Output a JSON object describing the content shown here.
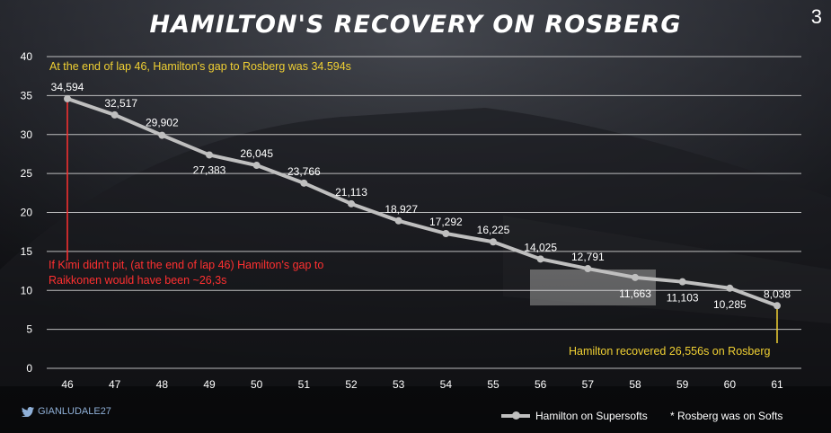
{
  "header": {
    "title": "HAMILTON'S RECOVERY ON ROSBERG",
    "page_number": "3"
  },
  "footer": {
    "handle": "GIANLUDALE27",
    "legend_label": "Hamilton on Supersofts",
    "note": "* Rosberg was on Softs"
  },
  "colors": {
    "line": "#bfbfbf",
    "grid": "#d9d9d9",
    "annotation_yellow": "#f0d033",
    "annotation_red": "#ff3030",
    "text": "#ffffff"
  },
  "annotations": {
    "top": "At the end of lap 46, Hamilton's gap to Rosberg was 34.594s",
    "kimi": "If Kimi didn't pit, (at the end of lap 46) Hamilton's gap to Raikkonen would have been ~26,3s",
    "recovered": "Hamilton recovered 26,556s on Rosberg"
  },
  "chart_data": {
    "type": "line",
    "title": "HAMILTON'S RECOVERY ON ROSBERG",
    "x": [
      46,
      47,
      48,
      49,
      50,
      51,
      52,
      53,
      54,
      55,
      56,
      57,
      58,
      59,
      60,
      61
    ],
    "series": [
      {
        "name": "Hamilton on Supersofts",
        "values": [
          34.594,
          32.517,
          29.902,
          27.383,
          26.045,
          23.766,
          21.113,
          18.927,
          17.292,
          16.225,
          14.025,
          12.791,
          11.663,
          11.103,
          10.285,
          8.038
        ],
        "labels": [
          "34,594",
          "32,517",
          "29,902",
          "27,383",
          "26,045",
          "23,766",
          "21,113",
          "18,927",
          "17,292",
          "16,225",
          "14,025",
          "12,791",
          "11,663",
          "11,103",
          "10,285",
          "8,038"
        ]
      }
    ],
    "ylim": [
      0,
      40
    ],
    "yticks": [
      0,
      5,
      10,
      15,
      20,
      25,
      30,
      35,
      40
    ],
    "grid": true,
    "legend": "bottom"
  }
}
